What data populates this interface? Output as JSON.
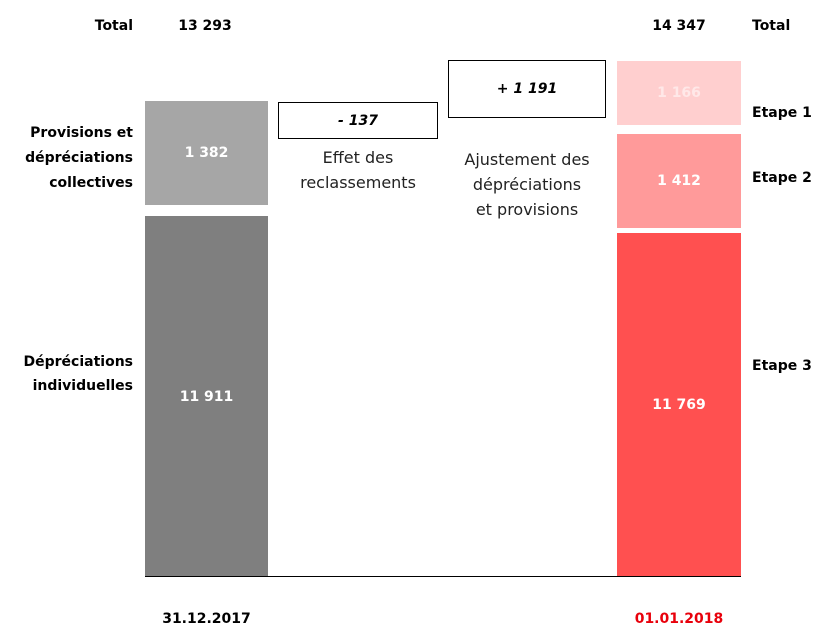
{
  "left": {
    "total_label": "Total",
    "total": "13 293",
    "date": "31.12.2017",
    "segments": [
      {
        "value": "1 382",
        "lines": [
          "Provisions et",
          "dépréciations",
          "collectives"
        ]
      },
      {
        "value": "11 911",
        "lines": [
          "Dépréciations",
          "individuelles"
        ]
      }
    ]
  },
  "right": {
    "total_label": "Total",
    "total": "14 347",
    "date": "01.01.2018",
    "segments": [
      {
        "value": "1 166",
        "lines": [
          "Etape 1"
        ]
      },
      {
        "value": "1 412",
        "lines": [
          "Etape 2"
        ]
      },
      {
        "value": "11 769",
        "lines": [
          "Etape 3"
        ]
      }
    ]
  },
  "adjustments": [
    {
      "value": "- 137",
      "lines": [
        "Effet des",
        "reclassements"
      ]
    },
    {
      "value": "+ 1 191",
      "lines": [
        "Ajustement des",
        "dépréciations",
        "et provisions"
      ]
    }
  ]
}
